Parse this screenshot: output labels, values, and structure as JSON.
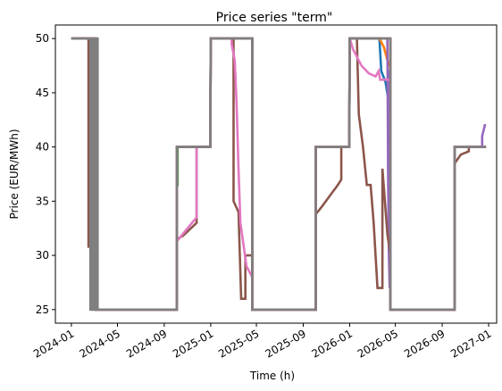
{
  "chart_data": {
    "type": "line",
    "title": "Price series \"term\"",
    "xlabel": "Time (h)",
    "ylabel": "Price (EUR/MWh)",
    "xlim": [
      "2023-11-20",
      "2027-01-22"
    ],
    "ylim": [
      23.75,
      51.25
    ],
    "xticks": [
      {
        "date": "2024-01-01",
        "label": "2024-01"
      },
      {
        "date": "2024-05-01",
        "label": "2024-05"
      },
      {
        "date": "2024-09-01",
        "label": "2024-09"
      },
      {
        "date": "2025-01-01",
        "label": "2025-01"
      },
      {
        "date": "2025-05-01",
        "label": "2025-05"
      },
      {
        "date": "2025-09-01",
        "label": "2025-09"
      },
      {
        "date": "2026-01-01",
        "label": "2026-01"
      },
      {
        "date": "2026-05-01",
        "label": "2026-05"
      },
      {
        "date": "2026-09-01",
        "label": "2026-09"
      },
      {
        "date": "2027-01-01",
        "label": "2027-01"
      }
    ],
    "yticks": [
      25,
      30,
      35,
      40,
      45,
      50
    ],
    "grid": false,
    "legend": "none",
    "series": [
      {
        "color": "#1f77b4",
        "points": [
          [
            "2024-01-01",
            50
          ],
          [
            "2024-03-05",
            50
          ],
          [
            "2024-03-05",
            25
          ],
          [
            "2024-10-04",
            25
          ],
          [
            "2024-10-04",
            40
          ],
          [
            "2024-12-31",
            40
          ],
          [
            "2025-01-01",
            50
          ],
          [
            "2025-04-20",
            50
          ],
          [
            "2025-04-20",
            25
          ],
          [
            "2025-10-04",
            25
          ],
          [
            "2025-10-04",
            40
          ],
          [
            "2025-12-31",
            40
          ],
          [
            "2026-01-01",
            50
          ],
          [
            "2026-03-20",
            50
          ],
          [
            "2026-03-25",
            47
          ],
          [
            "2026-04-05",
            46
          ],
          [
            "2026-04-12",
            44.5
          ],
          [
            "2026-04-18",
            44.5
          ],
          [
            "2026-04-18",
            25
          ],
          [
            "2026-10-04",
            25
          ],
          [
            "2026-10-04",
            40
          ],
          [
            "2026-12-25",
            40
          ]
        ]
      },
      {
        "color": "#ff7f0e",
        "points": [
          [
            "2024-01-01",
            50
          ],
          [
            "2024-03-05",
            50
          ],
          [
            "2024-03-05",
            25
          ],
          [
            "2024-10-04",
            25
          ],
          [
            "2024-10-04",
            40
          ],
          [
            "2024-12-31",
            40
          ],
          [
            "2025-01-01",
            50
          ],
          [
            "2025-04-20",
            50
          ],
          [
            "2025-04-20",
            25
          ],
          [
            "2025-10-04",
            25
          ],
          [
            "2025-10-04",
            40
          ],
          [
            "2025-12-31",
            40
          ],
          [
            "2026-01-01",
            50
          ],
          [
            "2026-03-20",
            50
          ],
          [
            "2026-04-01",
            49.2
          ],
          [
            "2026-04-10",
            48
          ],
          [
            "2026-04-16",
            47.5
          ],
          [
            "2026-04-18",
            47.5
          ],
          [
            "2026-04-18",
            25
          ],
          [
            "2026-10-04",
            25
          ],
          [
            "2026-10-04",
            40
          ],
          [
            "2026-12-25",
            40
          ]
        ]
      },
      {
        "color": "#2ca02c",
        "points": [
          [
            "2024-01-01",
            50
          ],
          [
            "2024-03-05",
            50
          ],
          [
            "2024-03-05",
            25
          ],
          [
            "2024-10-04",
            25
          ],
          [
            "2024-10-04",
            36.5
          ],
          [
            "2024-10-06",
            36.5
          ],
          [
            "2024-10-06",
            40
          ],
          [
            "2024-12-31",
            40
          ],
          [
            "2025-01-01",
            50
          ],
          [
            "2025-04-20",
            50
          ],
          [
            "2025-04-20",
            25
          ],
          [
            "2025-10-04",
            25
          ],
          [
            "2025-10-04",
            40
          ],
          [
            "2025-12-31",
            40
          ],
          [
            "2026-01-01",
            50
          ],
          [
            "2026-04-18",
            50
          ],
          [
            "2026-04-18",
            25
          ],
          [
            "2026-10-04",
            25
          ],
          [
            "2026-10-04",
            40
          ],
          [
            "2026-12-25",
            40
          ]
        ]
      },
      {
        "color": "#d62728",
        "points": [
          [
            "2024-01-01",
            50
          ],
          [
            "2024-03-05",
            50
          ],
          [
            "2024-03-05",
            25
          ],
          [
            "2024-10-04",
            25
          ],
          [
            "2024-10-04",
            40
          ],
          [
            "2024-12-31",
            40
          ],
          [
            "2025-01-01",
            50
          ],
          [
            "2025-04-20",
            50
          ],
          [
            "2025-04-20",
            25
          ],
          [
            "2025-10-04",
            25
          ],
          [
            "2025-10-04",
            40
          ],
          [
            "2025-12-31",
            40
          ],
          [
            "2026-01-01",
            50
          ],
          [
            "2026-04-18",
            50
          ],
          [
            "2026-04-18",
            25
          ],
          [
            "2026-10-04",
            25
          ],
          [
            "2026-10-04",
            40
          ],
          [
            "2026-12-25",
            40
          ]
        ]
      },
      {
        "color": "#9467bd",
        "points": [
          [
            "2024-01-01",
            50
          ],
          [
            "2024-03-05",
            50
          ],
          [
            "2024-03-05",
            25
          ],
          [
            "2024-10-04",
            25
          ],
          [
            "2024-10-04",
            40
          ],
          [
            "2024-12-31",
            40
          ],
          [
            "2025-01-01",
            50
          ],
          [
            "2025-04-20",
            50
          ],
          [
            "2025-04-20",
            25
          ],
          [
            "2025-10-04",
            25
          ],
          [
            "2025-10-04",
            40
          ],
          [
            "2025-12-31",
            40
          ],
          [
            "2026-01-01",
            50
          ],
          [
            "2026-04-10",
            50
          ],
          [
            "2026-04-12",
            37
          ],
          [
            "2026-04-14",
            30
          ],
          [
            "2026-04-16",
            27
          ],
          [
            "2026-04-16",
            47
          ],
          [
            "2026-04-18",
            47
          ],
          [
            "2026-04-18",
            25
          ],
          [
            "2026-10-04",
            25
          ],
          [
            "2026-10-04",
            40
          ],
          [
            "2026-12-15",
            40
          ],
          [
            "2026-12-15",
            41
          ],
          [
            "2026-12-22",
            42
          ],
          [
            "2026-12-25",
            42
          ]
        ]
      },
      {
        "color": "#8c564b",
        "points": [
          [
            "2024-01-01",
            50
          ],
          [
            "2024-02-15",
            50
          ],
          [
            "2024-02-15",
            30.8
          ],
          [
            "2024-02-25",
            30.8
          ],
          [
            "2024-02-25",
            25
          ],
          [
            "2024-10-04",
            25
          ],
          [
            "2024-10-04",
            31.5
          ],
          [
            "2024-10-20",
            31.8
          ],
          [
            "2024-11-10",
            32.5
          ],
          [
            "2024-11-25",
            33
          ],
          [
            "2024-11-25",
            40
          ],
          [
            "2024-12-31",
            40
          ],
          [
            "2025-01-01",
            50
          ],
          [
            "2025-03-02",
            50
          ],
          [
            "2025-03-02",
            35
          ],
          [
            "2025-03-15",
            34
          ],
          [
            "2025-03-22",
            26
          ],
          [
            "2025-04-02",
            26
          ],
          [
            "2025-04-02",
            30
          ],
          [
            "2025-04-20",
            30
          ],
          [
            "2025-04-20",
            25
          ],
          [
            "2025-10-04",
            25
          ],
          [
            "2025-10-04",
            33.8
          ],
          [
            "2025-10-20",
            34.5
          ],
          [
            "2025-11-10",
            35.5
          ],
          [
            "2025-12-01",
            36.5
          ],
          [
            "2025-12-10",
            37
          ],
          [
            "2025-12-10",
            40
          ],
          [
            "2025-12-31",
            40
          ],
          [
            "2026-01-01",
            50
          ],
          [
            "2026-01-20",
            50
          ],
          [
            "2026-01-25",
            43
          ],
          [
            "2026-02-05",
            40
          ],
          [
            "2026-02-15",
            36.5
          ],
          [
            "2026-02-25",
            36.5
          ],
          [
            "2026-03-05",
            33
          ],
          [
            "2026-03-15",
            27
          ],
          [
            "2026-03-28",
            27
          ],
          [
            "2026-03-28",
            38
          ],
          [
            "2026-04-10",
            32
          ],
          [
            "2026-04-18",
            30
          ],
          [
            "2026-04-18",
            25
          ],
          [
            "2026-10-04",
            25
          ],
          [
            "2026-10-04",
            38.5
          ],
          [
            "2026-10-20",
            39.3
          ],
          [
            "2026-11-10",
            39.6
          ],
          [
            "2026-11-10",
            40
          ],
          [
            "2026-12-25",
            40
          ]
        ]
      },
      {
        "color": "#e377c2",
        "points": [
          [
            "2024-01-01",
            50
          ],
          [
            "2024-03-05",
            50
          ],
          [
            "2024-03-05",
            25
          ],
          [
            "2024-10-04",
            25
          ],
          [
            "2024-10-04",
            40
          ],
          [
            "2024-10-04",
            31.3
          ],
          [
            "2024-11-01",
            32.5
          ],
          [
            "2024-11-25",
            33.5
          ],
          [
            "2024-11-25",
            40
          ],
          [
            "2024-12-31",
            40
          ],
          [
            "2025-01-01",
            50
          ],
          [
            "2025-02-25",
            50
          ],
          [
            "2025-02-25",
            49.5
          ],
          [
            "2025-03-05",
            48
          ],
          [
            "2025-03-10",
            44
          ],
          [
            "2025-03-15",
            38
          ],
          [
            "2025-03-20",
            33
          ],
          [
            "2025-03-28",
            31
          ],
          [
            "2025-04-05",
            29
          ],
          [
            "2025-04-20",
            28
          ],
          [
            "2025-04-20",
            25
          ],
          [
            "2025-10-04",
            25
          ],
          [
            "2025-10-04",
            40
          ],
          [
            "2025-12-31",
            40
          ],
          [
            "2026-01-01",
            50
          ],
          [
            "2026-01-10",
            49
          ],
          [
            "2026-02-01",
            47.5
          ],
          [
            "2026-02-20",
            46.8
          ],
          [
            "2026-03-10",
            46.5
          ],
          [
            "2026-03-18",
            47
          ],
          [
            "2026-03-22",
            46.2
          ],
          [
            "2026-04-18",
            46.2
          ],
          [
            "2026-04-18",
            25
          ],
          [
            "2026-10-04",
            25
          ],
          [
            "2026-10-04",
            40
          ],
          [
            "2026-12-25",
            40
          ]
        ]
      },
      {
        "color": "#7f7f7f",
        "points": [
          [
            "2024-01-01",
            50
          ],
          [
            "2024-02-20",
            50
          ],
          [
            "2024-02-20",
            25
          ],
          [
            "2024-02-25",
            25
          ],
          [
            "2024-02-25",
            50
          ],
          [
            "2024-03-01",
            50
          ],
          [
            "2024-03-01",
            25
          ],
          [
            "2024-03-05",
            25
          ],
          [
            "2024-03-05",
            50
          ],
          [
            "2024-03-10",
            50
          ],
          [
            "2024-03-10",
            25
          ],
          [
            "2024-10-04",
            25
          ],
          [
            "2024-10-04",
            40
          ],
          [
            "2024-12-31",
            40
          ],
          [
            "2025-01-01",
            50
          ],
          [
            "2025-04-20",
            50
          ],
          [
            "2025-04-20",
            25
          ],
          [
            "2025-10-04",
            25
          ],
          [
            "2025-10-04",
            40
          ],
          [
            "2025-12-31",
            40
          ],
          [
            "2026-01-01",
            50
          ],
          [
            "2026-04-18",
            50
          ],
          [
            "2026-04-18",
            25
          ],
          [
            "2026-10-04",
            25
          ],
          [
            "2026-10-04",
            40
          ],
          [
            "2026-12-25",
            40
          ]
        ]
      }
    ]
  }
}
